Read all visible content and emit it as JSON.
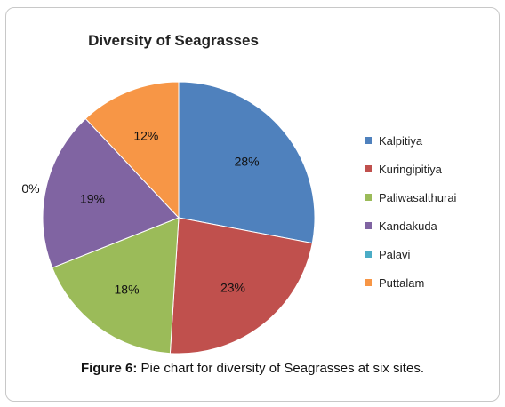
{
  "chart_data": {
    "type": "pie",
    "title": "Diversity of Seagrasses",
    "slices": [
      {
        "label": "Kalpitiya",
        "value": 28,
        "display": "28%",
        "color": "#4f81bd"
      },
      {
        "label": "Kuringipitiya",
        "value": 23,
        "display": "23%",
        "color": "#c0504d"
      },
      {
        "label": "Paliwasalthurai",
        "value": 18,
        "display": "18%",
        "color": "#9bbb59"
      },
      {
        "label": "Kandakuda",
        "value": 19,
        "display": "19%",
        "color": "#8064a2"
      },
      {
        "label": "Palavi",
        "value": 0,
        "display": "0%",
        "color": "#4bacc6"
      },
      {
        "label": "Puttalam",
        "value": 12,
        "display": "12%",
        "color": "#f79646"
      }
    ],
    "legend_position": "right"
  },
  "caption": {
    "label": "Figure 6:",
    "text": " Pie chart for diversity of Seagrasses at six sites."
  }
}
